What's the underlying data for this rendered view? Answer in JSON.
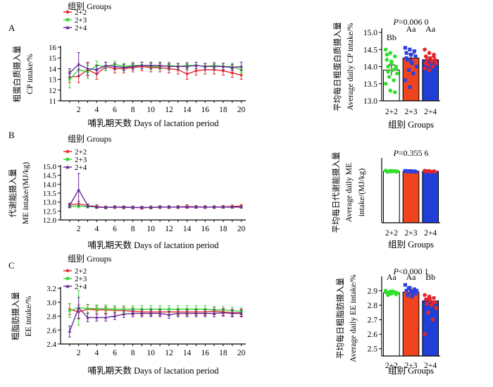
{
  "chart_data": [
    {
      "id": "A_line",
      "type": "line",
      "panel": "A",
      "legend_title": "组别 Groups",
      "xlabel": "哺乳期天数 Days of lactation period",
      "ylabel_lines": [
        "粗蛋白质摄入量",
        "CP intake/%"
      ],
      "ylim": [
        11,
        16
      ],
      "yticks": [
        "11",
        "12",
        "13",
        "14",
        "15",
        "16"
      ],
      "xlim": [
        0,
        20.5
      ],
      "xticks": [
        "2",
        "4",
        "6",
        "8",
        "10",
        "12",
        "14",
        "16",
        "18",
        "20"
      ],
      "x": [
        1,
        2,
        3,
        4,
        5,
        6,
        7,
        8,
        9,
        10,
        11,
        12,
        13,
        14,
        15,
        16,
        17,
        18,
        19,
        20
      ],
      "series": [
        {
          "name": "2+2",
          "color": "#e8252a",
          "marker": "circle",
          "values": [
            13.2,
            13.3,
            13.9,
            13.5,
            14.2,
            14.0,
            14.0,
            14.1,
            14.2,
            14.1,
            14.1,
            14.0,
            13.9,
            13.5,
            13.8,
            13.9,
            13.9,
            13.8,
            13.6,
            13.4
          ],
          "err": [
            0.5,
            0.6,
            0.6,
            0.5,
            0.4,
            0.4,
            0.4,
            0.4,
            0.4,
            0.4,
            0.4,
            0.4,
            0.4,
            0.5,
            0.4,
            0.4,
            0.4,
            0.4,
            0.4,
            0.4
          ]
        },
        {
          "name": "2+3",
          "color": "#3fd43a",
          "marker": "square",
          "values": [
            13.0,
            13.9,
            13.7,
            14.3,
            14.2,
            14.4,
            14.2,
            14.3,
            14.3,
            14.2,
            14.2,
            14.3,
            14.2,
            14.3,
            14.3,
            14.2,
            14.3,
            14.2,
            14.2,
            13.9
          ],
          "err": [
            0.8,
            0.6,
            0.6,
            0.4,
            0.4,
            0.3,
            0.3,
            0.3,
            0.3,
            0.3,
            0.3,
            0.3,
            0.3,
            0.3,
            0.3,
            0.3,
            0.3,
            0.3,
            0.3,
            0.3
          ]
        },
        {
          "name": "2+4",
          "color": "#6a2a9a",
          "marker": "triangle",
          "values": [
            13.6,
            14.4,
            14.0,
            13.9,
            14.3,
            14.2,
            14.1,
            14.2,
            14.3,
            14.3,
            14.3,
            14.2,
            14.2,
            14.2,
            14.3,
            14.2,
            14.2,
            14.2,
            14.1,
            14.2
          ],
          "err": [
            0.4,
            1.1,
            0.6,
            0.4,
            0.3,
            0.3,
            0.3,
            0.3,
            0.3,
            0.3,
            0.3,
            0.3,
            0.3,
            0.3,
            0.3,
            0.3,
            0.3,
            0.3,
            0.3,
            0.4
          ]
        }
      ]
    },
    {
      "id": "A_bar",
      "type": "bar",
      "panel": "A",
      "annotation": "P=0.006 0",
      "xlabel": "组别 Groups",
      "ylabel_lines": [
        "平均每日粗蛋白质摄入量",
        "Average daily CP intake/%"
      ],
      "ylim": [
        13.0,
        15.0
      ],
      "yticks": [
        "13.0",
        "13.5",
        "14.0",
        "14.5",
        "15.0"
      ],
      "categories": [
        "2+2",
        "2+3",
        "2+4"
      ],
      "values": [
        13.9,
        14.25,
        14.2
      ],
      "err": [
        0.15,
        0.12,
        0.08
      ],
      "letters": [
        "Bb",
        "Aa",
        "Aa"
      ],
      "bar_colors": [
        "#ffffff",
        "#f0441e",
        "#1f3fd6"
      ],
      "point_colors": [
        "#2fe22a",
        "#2f3fe0",
        "#e8252a"
      ],
      "points": [
        [
          14.5,
          14.4,
          14.3,
          14.2,
          14.1,
          14.0,
          14.0,
          13.9,
          13.8,
          13.7,
          13.6,
          13.5,
          13.3,
          13.25,
          14.35,
          14.15,
          13.95,
          13.85
        ],
        [
          14.55,
          14.5,
          14.45,
          14.4,
          14.35,
          14.3,
          14.2,
          14.1,
          14.0,
          13.9,
          13.8,
          13.6,
          13.4,
          14.45,
          14.25,
          14.15
        ],
        [
          14.5,
          14.4,
          14.35,
          14.3,
          14.25,
          14.2,
          14.2,
          14.15,
          14.1,
          14.05,
          14.0,
          13.95,
          13.9,
          14.3,
          14.1
        ]
      ]
    },
    {
      "id": "B_line",
      "type": "line",
      "panel": "B",
      "legend_title": "组别 Groups",
      "xlabel": "哺乳期天数 Days of lactation period",
      "ylabel_lines": [
        "代谢能摄入量",
        "ME intake/(MJ/kg)"
      ],
      "ylim": [
        12.0,
        15.0
      ],
      "yticks": [
        "12.0",
        "12.5",
        "13.0",
        "13.5",
        "14.0",
        "14.5",
        "15.0"
      ],
      "xlim": [
        0,
        20.5
      ],
      "xticks": [
        "2",
        "4",
        "6",
        "8",
        "10",
        "12",
        "14",
        "16",
        "18",
        "20"
      ],
      "x": [
        1,
        2,
        3,
        4,
        5,
        6,
        7,
        8,
        9,
        10,
        11,
        12,
        13,
        14,
        15,
        16,
        17,
        18,
        19,
        20
      ],
      "series": [
        {
          "name": "2+2",
          "color": "#e8252a",
          "marker": "circle",
          "values": [
            12.85,
            12.9,
            12.8,
            12.75,
            12.7,
            12.72,
            12.7,
            12.7,
            12.68,
            12.7,
            12.72,
            12.72,
            12.72,
            12.75,
            12.73,
            12.72,
            12.72,
            12.73,
            12.75,
            12.78
          ],
          "err": [
            0.1,
            0.15,
            0.1,
            0.1,
            0.08,
            0.08,
            0.08,
            0.08,
            0.08,
            0.08,
            0.08,
            0.08,
            0.08,
            0.1,
            0.08,
            0.08,
            0.08,
            0.08,
            0.08,
            0.08
          ]
        },
        {
          "name": "2+3",
          "color": "#3fd43a",
          "marker": "square",
          "values": [
            12.75,
            12.78,
            12.75,
            12.72,
            12.7,
            12.72,
            12.72,
            12.7,
            12.7,
            12.7,
            12.72,
            12.72,
            12.72,
            12.72,
            12.72,
            12.72,
            12.72,
            12.72,
            12.72,
            12.72
          ],
          "err": [
            0.08,
            0.1,
            0.08,
            0.08,
            0.06,
            0.06,
            0.06,
            0.06,
            0.06,
            0.06,
            0.06,
            0.06,
            0.06,
            0.06,
            0.06,
            0.06,
            0.06,
            0.06,
            0.06,
            0.06
          ]
        },
        {
          "name": "2+4",
          "color": "#6a2a9a",
          "marker": "triangle",
          "values": [
            12.8,
            13.7,
            12.8,
            12.72,
            12.7,
            12.72,
            12.72,
            12.7,
            12.7,
            12.7,
            12.72,
            12.72,
            12.72,
            12.72,
            12.72,
            12.72,
            12.72,
            12.72,
            12.72,
            12.72
          ],
          "err": [
            0.1,
            0.9,
            0.1,
            0.06,
            0.06,
            0.06,
            0.06,
            0.06,
            0.06,
            0.06,
            0.06,
            0.06,
            0.06,
            0.06,
            0.06,
            0.06,
            0.06,
            0.06,
            0.06,
            0.06
          ]
        }
      ]
    },
    {
      "id": "B_bar",
      "type": "bar",
      "panel": "B",
      "annotation": "P=0.355 6",
      "xlabel": "组别 Groups",
      "ylabel_lines": [
        "平均每日代谢能摄入量",
        "Average daily ME",
        "intake/(MJ/kg)"
      ],
      "ylim": [
        0,
        15.0
      ],
      "yticks": [],
      "categories": [
        "2+2",
        "2+3",
        "2+4"
      ],
      "values": [
        12.75,
        12.72,
        12.72
      ],
      "err": [
        0.05,
        0.05,
        0.05
      ],
      "letters": [],
      "bar_colors": [
        "#ffffff",
        "#f0441e",
        "#1f3fd6"
      ],
      "point_colors": [
        "#2fe22a",
        "#2f3fe0",
        "#e8252a"
      ],
      "points": [
        [
          12.9,
          12.85,
          12.8,
          12.75,
          12.7,
          12.65,
          12.6,
          12.78,
          12.72
        ],
        [
          12.85,
          12.8,
          12.75,
          12.7,
          12.65,
          12.6,
          12.78,
          12.72
        ],
        [
          12.88,
          12.82,
          12.76,
          12.7,
          12.64,
          12.6,
          12.74
        ]
      ]
    },
    {
      "id": "C_line",
      "type": "line",
      "panel": "C",
      "legend_title": "组别 Groups",
      "xlabel": "哺乳期天数 Days of lactation period",
      "ylabel_lines": [
        "粗脂肪摄入量",
        "EE intake/%"
      ],
      "ylim": [
        2.4,
        3.2
      ],
      "yticks": [
        "2.4",
        "2.6",
        "2.8",
        "3.0",
        "3.2"
      ],
      "xlim": [
        0,
        20.5
      ],
      "xticks": [
        "2",
        "4",
        "6",
        "8",
        "10",
        "12",
        "14",
        "16",
        "18",
        "20"
      ],
      "x": [
        1,
        2,
        3,
        4,
        5,
        6,
        7,
        8,
        9,
        10,
        11,
        12,
        13,
        14,
        15,
        16,
        17,
        18,
        19,
        20
      ],
      "series": [
        {
          "name": "2+2",
          "color": "#e8252a",
          "marker": "circle",
          "values": [
            2.9,
            2.86,
            2.9,
            2.89,
            2.89,
            2.88,
            2.88,
            2.87,
            2.86,
            2.86,
            2.86,
            2.86,
            2.86,
            2.86,
            2.86,
            2.86,
            2.87,
            2.86,
            2.85,
            2.85
          ],
          "err": [
            0.08,
            0.1,
            0.06,
            0.06,
            0.05,
            0.05,
            0.05,
            0.05,
            0.05,
            0.05,
            0.05,
            0.05,
            0.05,
            0.05,
            0.05,
            0.05,
            0.05,
            0.05,
            0.05,
            0.05
          ]
        },
        {
          "name": "2+3",
          "color": "#3fd43a",
          "marker": "square",
          "values": [
            2.88,
            2.92,
            2.91,
            2.91,
            2.91,
            2.9,
            2.9,
            2.9,
            2.9,
            2.9,
            2.9,
            2.9,
            2.9,
            2.9,
            2.9,
            2.9,
            2.89,
            2.89,
            2.88,
            2.87
          ],
          "err": [
            0.1,
            0.25,
            0.06,
            0.05,
            0.05,
            0.05,
            0.05,
            0.05,
            0.05,
            0.05,
            0.05,
            0.05,
            0.05,
            0.05,
            0.05,
            0.05,
            0.05,
            0.05,
            0.05,
            0.05
          ]
        },
        {
          "name": "2+4",
          "color": "#6a2a9a",
          "marker": "triangle",
          "values": [
            2.58,
            2.92,
            2.78,
            2.78,
            2.78,
            2.8,
            2.83,
            2.84,
            2.84,
            2.84,
            2.84,
            2.82,
            2.84,
            2.84,
            2.84,
            2.84,
            2.84,
            2.85,
            2.84,
            2.84
          ],
          "err": [
            0.08,
            0.15,
            0.06,
            0.05,
            0.05,
            0.05,
            0.05,
            0.05,
            0.05,
            0.05,
            0.05,
            0.05,
            0.05,
            0.05,
            0.05,
            0.05,
            0.05,
            0.05,
            0.05,
            0.05
          ]
        }
      ]
    },
    {
      "id": "C_bar",
      "type": "bar",
      "panel": "C",
      "annotation": "P<0.000 1",
      "xlabel": "组别 Groups",
      "ylabel_lines": [
        "平均每日粗脂肪摄入量",
        "Average daily EE intake/%"
      ],
      "ylim": [
        2.45,
        2.97
      ],
      "yticks": [
        "2.5",
        "2.6",
        "2.7",
        "2.8",
        "2.9"
      ],
      "categories": [
        "2+2",
        "2+3",
        "2+4"
      ],
      "values": [
        2.885,
        2.89,
        2.83
      ],
      "err": [
        0.01,
        0.015,
        0.02
      ],
      "letters": [
        "Aa",
        "Aa",
        "Bb"
      ],
      "bar_colors": [
        "#ffffff",
        "#f0441e",
        "#1f3fd6"
      ],
      "point_colors": [
        "#2fe22a",
        "#2f3fe0",
        "#e8252a"
      ],
      "points": [
        [
          2.9,
          2.895,
          2.89,
          2.885,
          2.88,
          2.875,
          2.87,
          2.895,
          2.885,
          2.88
        ],
        [
          2.94,
          2.92,
          2.91,
          2.9,
          2.89,
          2.88,
          2.87,
          2.86,
          2.9,
          2.915,
          2.885
        ],
        [
          2.87,
          2.86,
          2.85,
          2.84,
          2.83,
          2.82,
          2.81,
          2.8,
          2.78,
          2.75,
          2.7,
          2.6,
          2.84,
          2.82
        ]
      ]
    }
  ],
  "panel_labels": [
    "A",
    "B",
    "C"
  ]
}
